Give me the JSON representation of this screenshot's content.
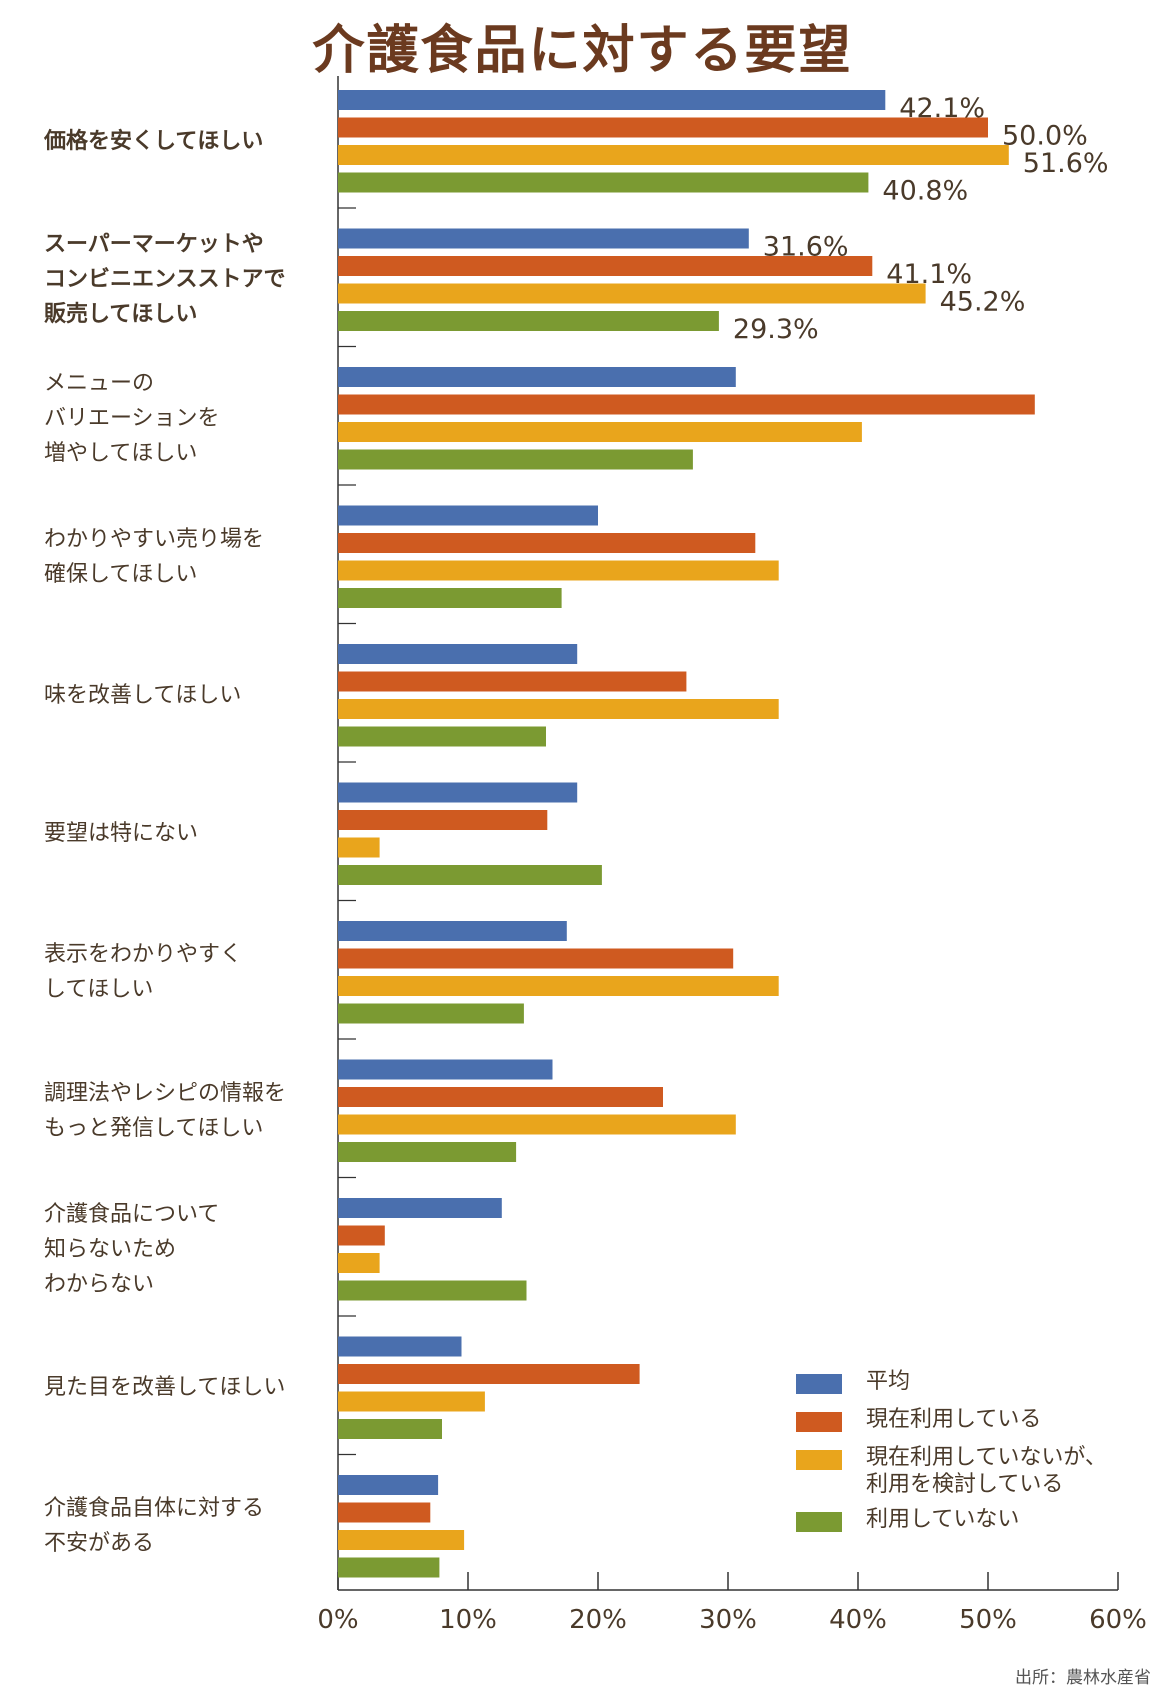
{
  "chart_data": {
    "type": "bar",
    "orientation": "horizontal",
    "title": "介護食品に対する要望",
    "source": "出所：農林水産省",
    "xlim": [
      0,
      60
    ],
    "xticks": [
      "0%",
      "10%",
      "20%",
      "30%",
      "40%",
      "50%",
      "60%"
    ],
    "tick_values": [
      0,
      10,
      20,
      30,
      40,
      50,
      60
    ],
    "legend_position": "bottom-right",
    "categories": [
      {
        "label": "価格を安くしてほしい",
        "bold": true
      },
      {
        "label": "スーパーマーケットや\nコンビニエンスストアで\n販売してほしい",
        "bold": true
      },
      {
        "label": "メニューの\nバリエーションを\n増やしてほしい",
        "bold": false
      },
      {
        "label": "わかりやすい売り場を\n確保してほしい",
        "bold": false
      },
      {
        "label": "味を改善してほしい",
        "bold": false
      },
      {
        "label": "要望は特にない",
        "bold": false
      },
      {
        "label": "表示をわかりやすく\nしてほしい",
        "bold": false
      },
      {
        "label": "調理法やレシピの情報を\nもっと発信してほしい",
        "bold": false
      },
      {
        "label": "介護食品について\n知らないため\nわからない",
        "bold": false
      },
      {
        "label": "見た目を改善してほしい",
        "bold": false
      },
      {
        "label": "介護食品自体に対する\n不安がある",
        "bold": false
      }
    ],
    "series": [
      {
        "name": "平均",
        "color": "#4a6fae",
        "values": [
          42.1,
          31.6,
          30.6,
          20.0,
          18.4,
          18.4,
          17.6,
          16.5,
          12.6,
          9.5,
          7.7
        ]
      },
      {
        "name": "現在利用している",
        "color": "#cf5a20",
        "values": [
          50.0,
          41.1,
          53.6,
          32.1,
          26.8,
          16.1,
          30.4,
          25.0,
          3.6,
          23.2,
          7.1
        ]
      },
      {
        "name": "現在利用していないが、\n利用を検討している",
        "color": "#e9a51c",
        "values": [
          51.6,
          45.2,
          40.3,
          33.9,
          33.9,
          3.2,
          33.9,
          30.6,
          3.2,
          11.3,
          9.7
        ]
      },
      {
        "name": "利用していない",
        "color": "#7b9a32",
        "values": [
          40.8,
          29.3,
          27.3,
          17.2,
          16.0,
          20.3,
          14.3,
          13.7,
          14.5,
          8.0,
          7.8
        ]
      }
    ],
    "data_labels": [
      [
        "42.1%",
        "50.0%",
        "51.6%",
        "40.8%"
      ],
      [
        "31.6%",
        "41.1%",
        "45.2%",
        "29.3%"
      ]
    ]
  }
}
